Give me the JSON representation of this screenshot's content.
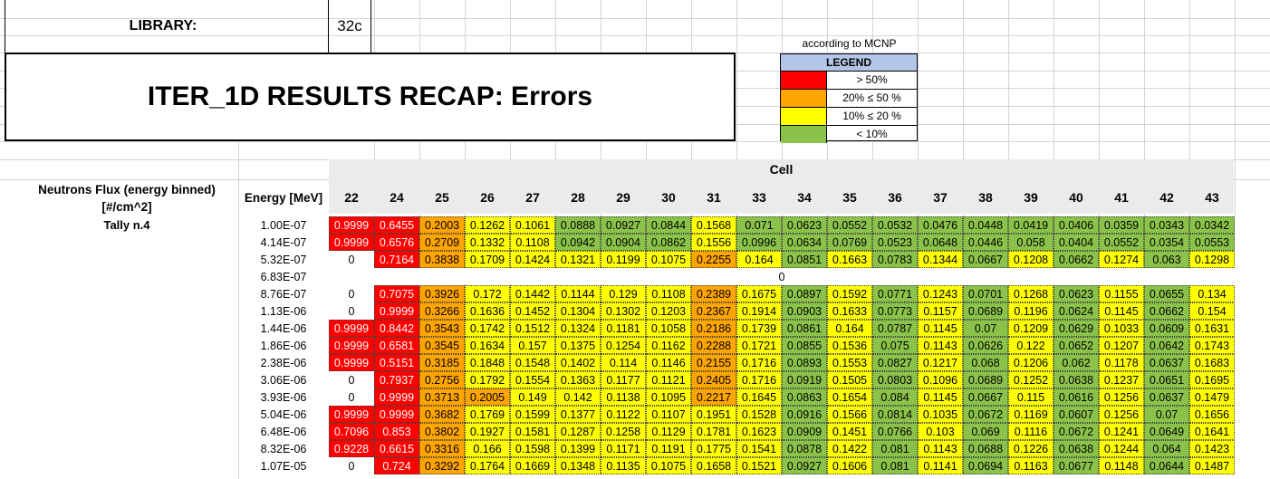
{
  "library": {
    "label": "LIBRARY:",
    "value": "32c"
  },
  "title": "ITER_1D RESULTS RECAP: Errors",
  "legend": {
    "caption": "according to MCNP",
    "header": "LEGEND",
    "items": [
      {
        "label": "> 50%",
        "color": "#ff0000"
      },
      {
        "label": "20% ≤ 50 %",
        "color": "#ffa500"
      },
      {
        "label": "10% ≤ 20 %",
        "color": "#ffff00"
      },
      {
        "label": "< 10%",
        "color": "#8bc34a"
      }
    ]
  },
  "table": {
    "cell_header": "Cell",
    "quantity_label": "Neutrons Flux (energy binned) [#/cm^2]",
    "tally_label": "Tally n.4",
    "energy_header": "Energy [MeV]",
    "columns": [
      "22",
      "24",
      "25",
      "26",
      "27",
      "28",
      "29",
      "30",
      "31",
      "33",
      "34",
      "35",
      "36",
      "37",
      "38",
      "39",
      "40",
      "41",
      "42",
      "43"
    ],
    "merged_row_value": "0",
    "rows": [
      {
        "energy": "1.00E-07",
        "values": [
          "0.9999",
          "0.6455",
          "0.2003",
          "0.1262",
          "0.1061",
          "0.0888",
          "0.0927",
          "0.0844",
          "0.1568",
          "0.071",
          "0.0623",
          "0.0552",
          "0.0532",
          "0.0476",
          "0.0448",
          "0.0419",
          "0.0406",
          "0.0359",
          "0.0343",
          "0.0342"
        ]
      },
      {
        "energy": "4.14E-07",
        "values": [
          "0.9999",
          "0.6576",
          "0.2709",
          "0.1332",
          "0.1108",
          "0.0942",
          "0.0904",
          "0.0862",
          "0.1556",
          "0.0996",
          "0.0634",
          "0.0769",
          "0.0523",
          "0.0648",
          "0.0446",
          "0.058",
          "0.0404",
          "0.0552",
          "0.0354",
          "0.0553"
        ]
      },
      {
        "energy": "5.32E-07",
        "values": [
          "0",
          "0.7164",
          "0.3838",
          "0.1709",
          "0.1424",
          "0.1321",
          "0.1199",
          "0.1075",
          "0.2255",
          "0.164",
          "0.0851",
          "0.1663",
          "0.0783",
          "0.1344",
          "0.0667",
          "0.1208",
          "0.0662",
          "0.1274",
          "0.063",
          "0.1298"
        ]
      },
      {
        "energy": "6.83E-07",
        "merged": true,
        "values": []
      },
      {
        "energy": "8.76E-07",
        "values": [
          "0",
          "0.7075",
          "0.3926",
          "0.172",
          "0.1442",
          "0.1144",
          "0.129",
          "0.1108",
          "0.2389",
          "0.1675",
          "0.0897",
          "0.1592",
          "0.0771",
          "0.1243",
          "0.0701",
          "0.1268",
          "0.0623",
          "0.1155",
          "0.0655",
          "0.134"
        ]
      },
      {
        "energy": "1.13E-06",
        "values": [
          "0",
          "0.9999",
          "0.3266",
          "0.1636",
          "0.1452",
          "0.1304",
          "0.1302",
          "0.1203",
          "0.2367",
          "0.1914",
          "0.0903",
          "0.1633",
          "0.0773",
          "0.1157",
          "0.0689",
          "0.1196",
          "0.0624",
          "0.1145",
          "0.0662",
          "0.154"
        ]
      },
      {
        "energy": "1.44E-06",
        "values": [
          "0.9999",
          "0.8442",
          "0.3543",
          "0.1742",
          "0.1512",
          "0.1324",
          "0.1181",
          "0.1058",
          "0.2186",
          "0.1739",
          "0.0861",
          "0.164",
          "0.0787",
          "0.1145",
          "0.07",
          "0.1209",
          "0.0629",
          "0.1033",
          "0.0609",
          "0.1631"
        ]
      },
      {
        "energy": "1.86E-06",
        "values": [
          "0.9999",
          "0.6581",
          "0.3545",
          "0.1634",
          "0.157",
          "0.1375",
          "0.1254",
          "0.1162",
          "0.2288",
          "0.1721",
          "0.0855",
          "0.1536",
          "0.075",
          "0.1143",
          "0.0626",
          "0.122",
          "0.0652",
          "0.1207",
          "0.0642",
          "0.1743"
        ]
      },
      {
        "energy": "2.38E-06",
        "values": [
          "0.9999",
          "0.5151",
          "0.3185",
          "0.1848",
          "0.1548",
          "0.1402",
          "0.114",
          "0.1146",
          "0.2155",
          "0.1716",
          "0.0893",
          "0.1553",
          "0.0827",
          "0.1217",
          "0.068",
          "0.1206",
          "0.062",
          "0.1178",
          "0.0637",
          "0.1683"
        ]
      },
      {
        "energy": "3.06E-06",
        "values": [
          "0",
          "0.7937",
          "0.2756",
          "0.1792",
          "0.1554",
          "0.1363",
          "0.1177",
          "0.1121",
          "0.2405",
          "0.1716",
          "0.0919",
          "0.1505",
          "0.0803",
          "0.1096",
          "0.0689",
          "0.1252",
          "0.0638",
          "0.1237",
          "0.0651",
          "0.1695"
        ]
      },
      {
        "energy": "3.93E-06",
        "values": [
          "0",
          "0.9999",
          "0.3713",
          "0.2005",
          "0.149",
          "0.142",
          "0.1138",
          "0.1095",
          "0.2217",
          "0.1645",
          "0.0863",
          "0.1654",
          "0.084",
          "0.1145",
          "0.0667",
          "0.115",
          "0.0616",
          "0.1256",
          "0.0637",
          "0.1479"
        ]
      },
      {
        "energy": "5.04E-06",
        "values": [
          "0.9999",
          "0.9999",
          "0.3682",
          "0.1769",
          "0.1599",
          "0.1377",
          "0.1122",
          "0.1107",
          "0.1951",
          "0.1528",
          "0.0916",
          "0.1566",
          "0.0814",
          "0.1035",
          "0.0672",
          "0.1169",
          "0.0607",
          "0.1256",
          "0.07",
          "0.1656"
        ]
      },
      {
        "energy": "6.48E-06",
        "values": [
          "0.7096",
          "0.853",
          "0.3802",
          "0.1927",
          "0.1581",
          "0.1287",
          "0.1258",
          "0.1129",
          "0.1781",
          "0.1623",
          "0.0909",
          "0.1451",
          "0.0766",
          "0.103",
          "0.069",
          "0.1116",
          "0.0672",
          "0.1241",
          "0.0649",
          "0.1641"
        ]
      },
      {
        "energy": "8.32E-06",
        "values": [
          "0.9228",
          "0.6615",
          "0.3316",
          "0.166",
          "0.1598",
          "0.1399",
          "0.1171",
          "0.1191",
          "0.1775",
          "0.1541",
          "0.0878",
          "0.1422",
          "0.081",
          "0.1143",
          "0.0688",
          "0.1226",
          "0.0638",
          "0.1244",
          "0.064",
          "0.1423"
        ]
      },
      {
        "energy": "1.07E-05",
        "values": [
          "0",
          "0.724",
          "0.3292",
          "0.1764",
          "0.1669",
          "0.1348",
          "0.1135",
          "0.1075",
          "0.1658",
          "0.1521",
          "0.0927",
          "0.1606",
          "0.081",
          "0.1141",
          "0.0694",
          "0.1163",
          "0.0677",
          "0.1148",
          "0.0644",
          "0.1487"
        ]
      }
    ]
  }
}
